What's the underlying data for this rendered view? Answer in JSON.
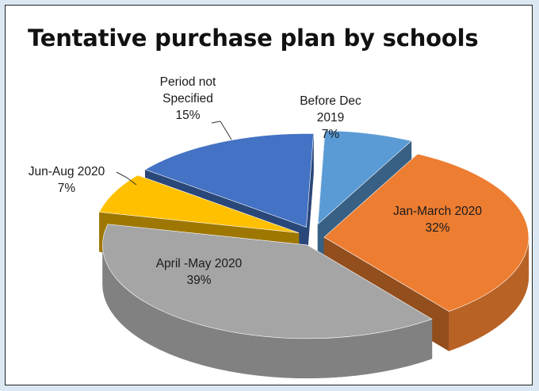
{
  "chart_data": {
    "type": "pie",
    "title": "Tentative purchase plan by schools",
    "slices": [
      {
        "label_lines": [
          "Before Dec",
          "2019"
        ],
        "pct_label": "7%",
        "value": 7,
        "color": "#5b9bd5"
      },
      {
        "label_lines": [
          "Jan-March 2020"
        ],
        "pct_label": "32%",
        "value": 32,
        "color": "#ed7d31"
      },
      {
        "label_lines": [
          "April -May 2020"
        ],
        "pct_label": "39%",
        "value": 39,
        "color": "#a5a5a5"
      },
      {
        "label_lines": [
          "Jun-Aug 2020"
        ],
        "pct_label": "7%",
        "value": 7,
        "color": "#ffc000"
      },
      {
        "label_lines": [
          "Period not",
          "Specified"
        ],
        "pct_label": "15%",
        "value": 15,
        "color": "#4472c4"
      }
    ]
  }
}
